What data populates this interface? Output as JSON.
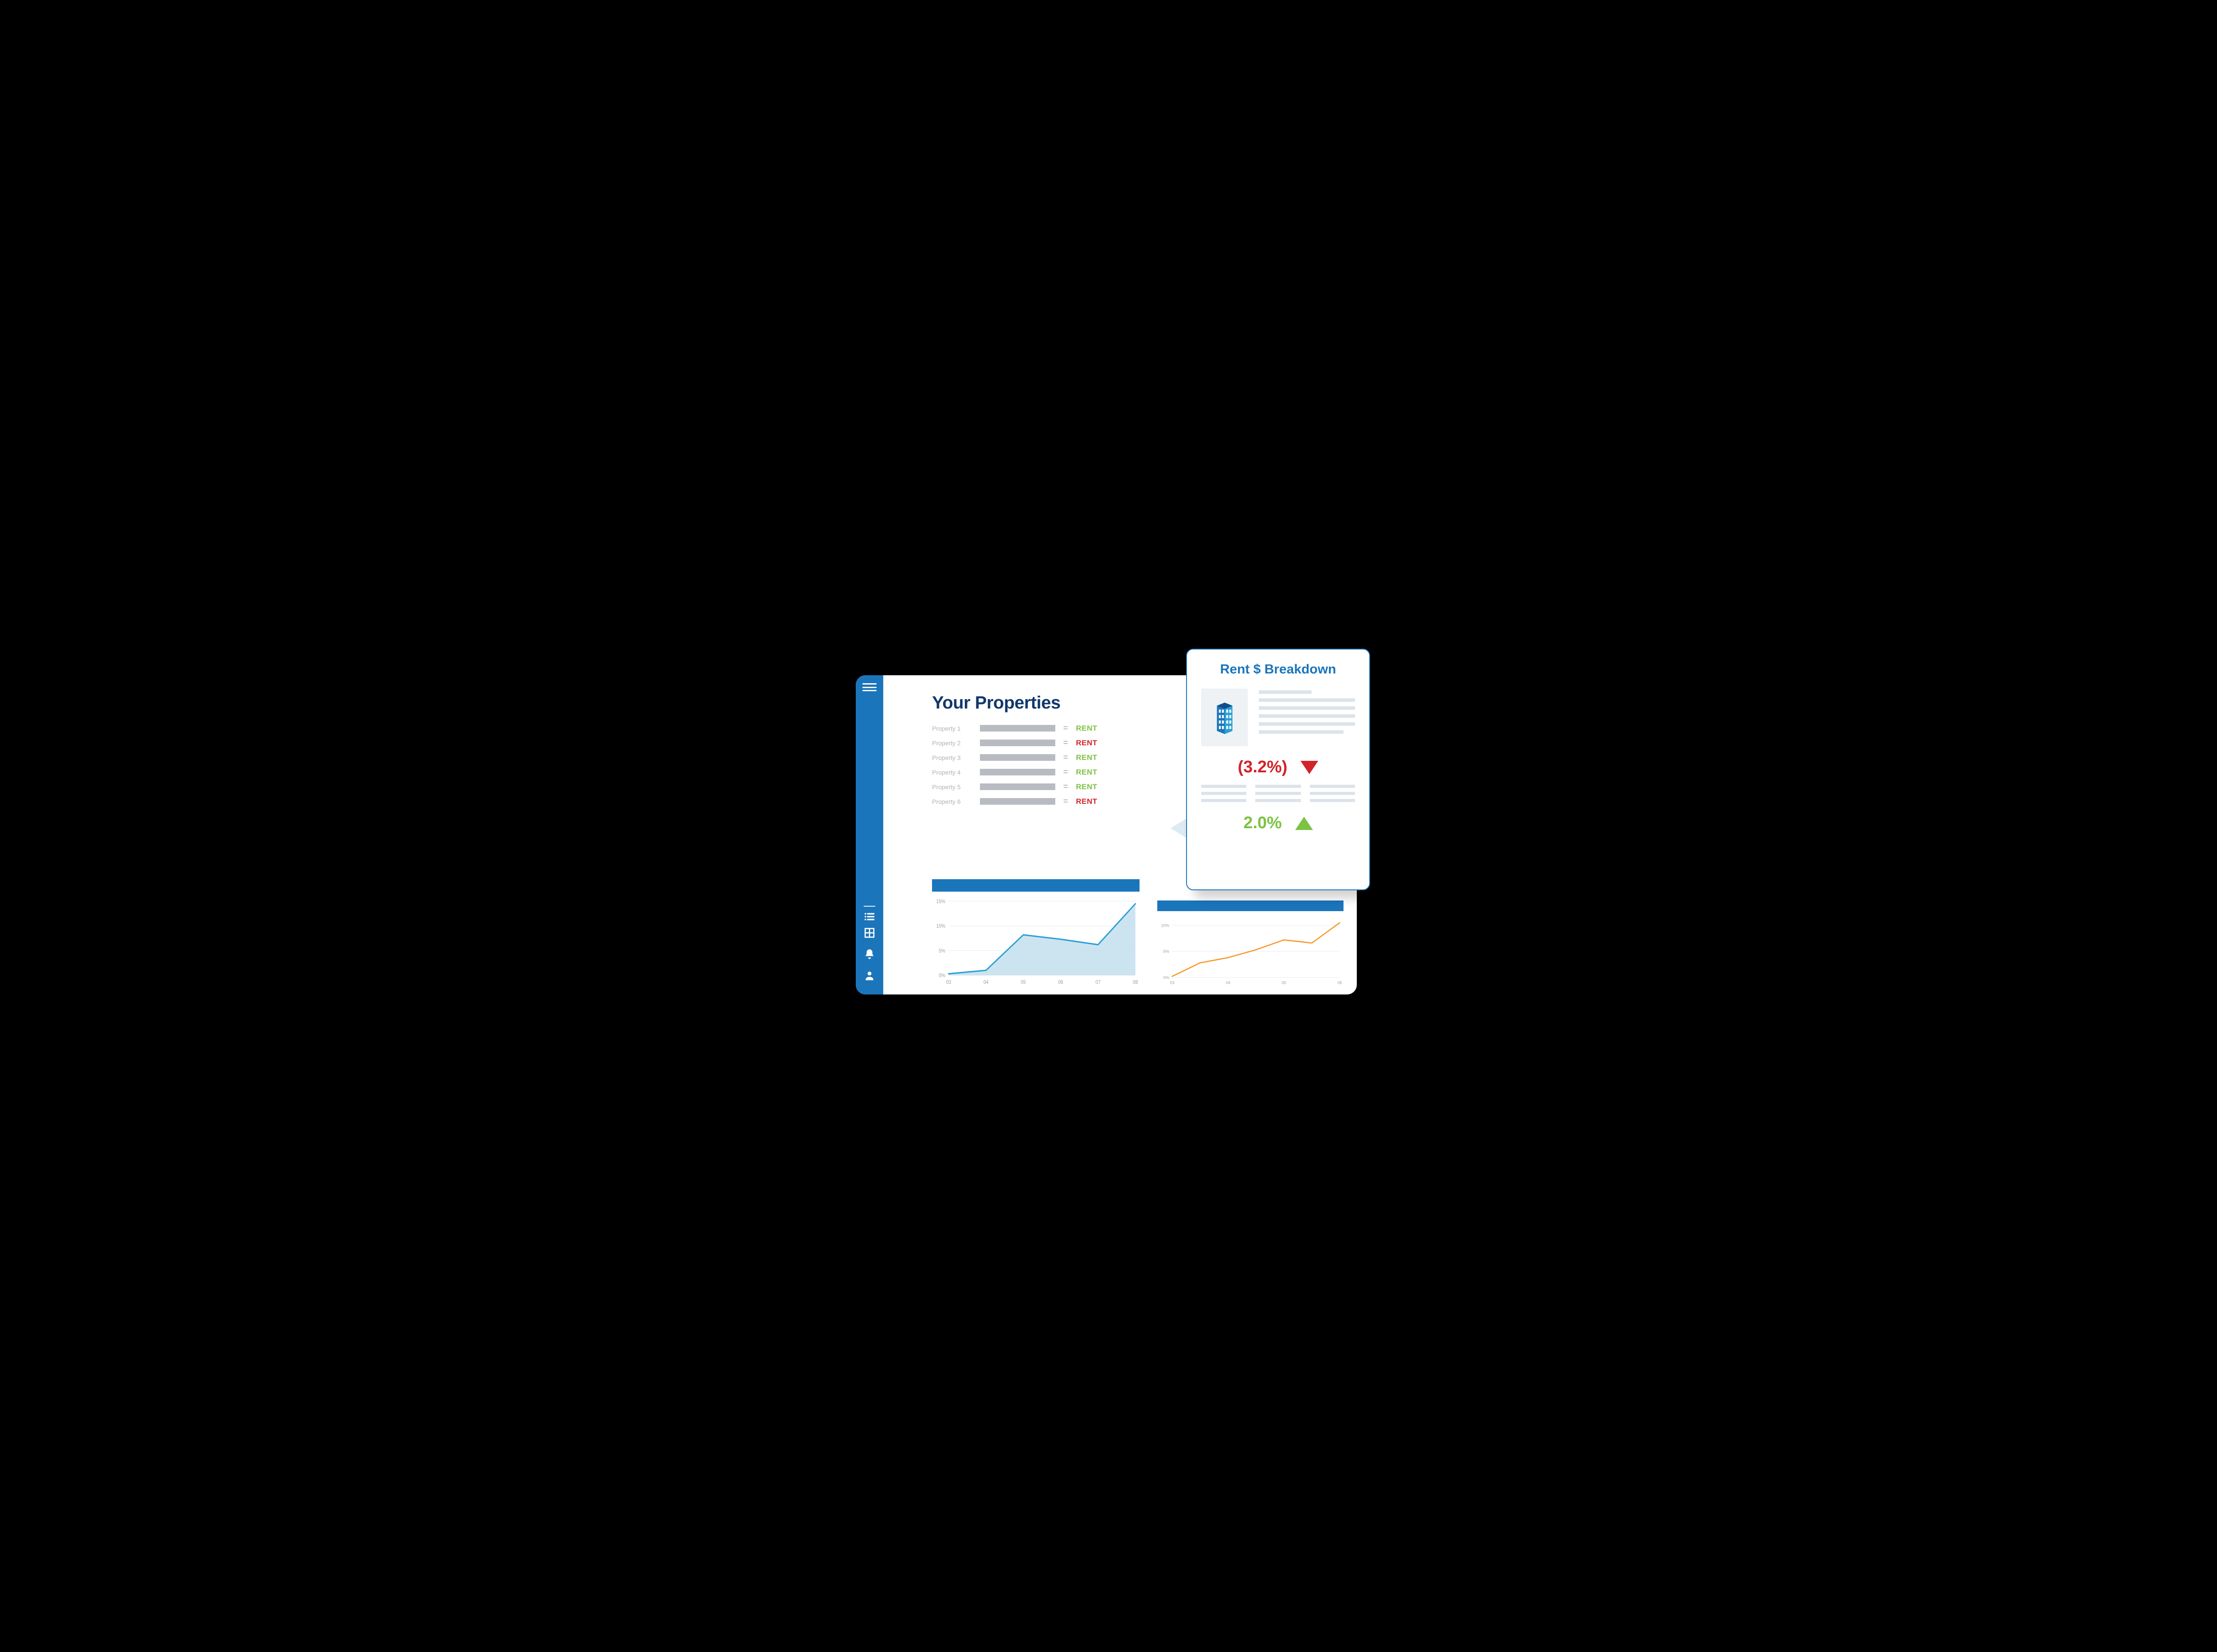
{
  "colors": {
    "brand_blue": "#1b75bb",
    "dark_navy": "#12386a",
    "green": "#7cc243",
    "red": "#d2232a",
    "gray_bar": "#b8bcc2",
    "gray_text": "#aeb2b8",
    "placeholder_line": "#dde3e8",
    "light_panel": "#eef2f4",
    "chart1_line": "#2a9fd6",
    "chart1_fill": "#c7e1ee",
    "chart2_line": "#f7941e",
    "axis_text": "#9aa0a6",
    "grid": "#e6e9ec"
  },
  "page": {
    "title": "Your Properties"
  },
  "properties": [
    {
      "label": "Property 1",
      "rent_label": "RENT",
      "status": "green"
    },
    {
      "label": "Property 2",
      "rent_label": "RENT",
      "status": "red"
    },
    {
      "label": "Property 3",
      "rent_label": "RENT",
      "status": "green"
    },
    {
      "label": "Property 4",
      "rent_label": "RENT",
      "status": "green"
    },
    {
      "label": "Property 5",
      "rent_label": "RENT",
      "status": "green"
    },
    {
      "label": "Property 6",
      "rent_label": "RENT",
      "status": "red"
    }
  ],
  "breakdown": {
    "title": "Rent $ Breakdown",
    "metric1": {
      "text": "(3.2%)",
      "direction": "down",
      "color": "red"
    },
    "metric2": {
      "text": "2.0%",
      "direction": "up",
      "color": "green"
    }
  },
  "chart1": {
    "type": "area",
    "header_color": "#1b75bb",
    "line_color": "#2a9fd6",
    "fill_color": "#c7e1ee",
    "line_width": 3,
    "x_labels": [
      "03",
      "04",
      "05",
      "06",
      "07",
      "08"
    ],
    "y_ticks": [
      0,
      5,
      10,
      15
    ],
    "y_tick_labels": [
      "0%",
      "5%",
      "10%",
      "15%"
    ],
    "ylim": [
      0,
      16
    ],
    "values": [
      0.3,
      1.0,
      8.2,
      7.3,
      6.2,
      14.5
    ]
  },
  "chart2": {
    "type": "line",
    "header_color": "#1b75bb",
    "line_color": "#f7941e",
    "line_width": 3,
    "x_labels": [
      "03",
      "04",
      "05",
      "06"
    ],
    "y_ticks": [
      0,
      5,
      10
    ],
    "y_tick_labels": [
      "0%",
      "5%",
      "10%"
    ],
    "ylim": [
      0,
      12
    ],
    "values": [
      0.2,
      2.8,
      3.8,
      5.3,
      7.2,
      6.6,
      10.5
    ]
  }
}
